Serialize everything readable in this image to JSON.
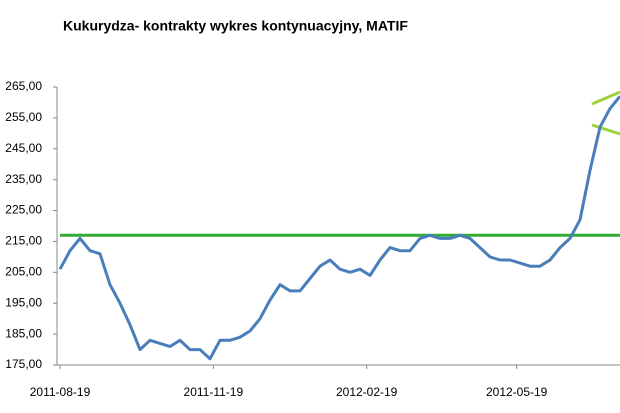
{
  "chart_data": {
    "type": "line",
    "title": "Kukurydza- kontrakty wykres kontynuacyjny, MATIF",
    "x": [
      "2011-08-19",
      "2011-08-25",
      "2011-08-31",
      "2011-09-06",
      "2011-09-12",
      "2011-09-18",
      "2011-09-24",
      "2011-09-30",
      "2011-10-06",
      "2011-10-12",
      "2011-10-18",
      "2011-10-24",
      "2011-10-30",
      "2011-11-05",
      "2011-11-11",
      "2011-11-17",
      "2011-11-23",
      "2011-11-29",
      "2011-12-05",
      "2011-12-11",
      "2011-12-17",
      "2011-12-23",
      "2011-12-29",
      "2012-01-04",
      "2012-01-10",
      "2012-01-16",
      "2012-01-22",
      "2012-01-28",
      "2012-02-03",
      "2012-02-09",
      "2012-02-15",
      "2012-02-21",
      "2012-02-27",
      "2012-03-04",
      "2012-03-10",
      "2012-03-16",
      "2012-03-22",
      "2012-03-28",
      "2012-04-03",
      "2012-04-09",
      "2012-04-15",
      "2012-04-21",
      "2012-04-27",
      "2012-05-03",
      "2012-05-09",
      "2012-05-15",
      "2012-05-21",
      "2012-05-27",
      "2012-06-02",
      "2012-06-08",
      "2012-06-14",
      "2012-06-20",
      "2012-06-26",
      "2012-07-02",
      "2012-07-08",
      "2012-07-14",
      "2012-07-20"
    ],
    "series": [
      {
        "color": "#4a7ebb",
        "values": [
          206,
          212,
          216,
          212,
          211,
          201,
          195,
          188,
          180,
          183,
          182,
          181,
          183,
          180,
          180,
          177,
          183,
          183,
          184,
          186,
          190,
          196,
          201,
          199,
          199,
          203,
          207,
          209,
          206,
          205,
          206,
          204,
          209,
          213,
          212,
          212,
          216,
          217,
          216,
          216,
          217,
          216,
          213,
          210,
          209,
          209,
          208,
          207,
          207,
          209,
          213,
          216,
          222,
          238,
          252,
          258,
          262
        ]
      }
    ],
    "xlim": [
      "2011-08-19",
      "2012-07-20"
    ],
    "xticks": [
      "2011-08-19",
      "2011-11-19",
      "2012-02-19",
      "2012-05-19"
    ],
    "ylim": [
      175,
      265
    ],
    "yticks": [
      {
        "value": 175,
        "label": "175,00"
      },
      {
        "value": 185,
        "label": "185,00"
      },
      {
        "value": 195,
        "label": "195,00"
      },
      {
        "value": 205,
        "label": "205,00"
      },
      {
        "value": 215,
        "label": "215,00"
      },
      {
        "value": 225,
        "label": "225,00"
      },
      {
        "value": 235,
        "label": "235,00"
      },
      {
        "value": 245,
        "label": "245,00"
      },
      {
        "value": 255,
        "label": "255,00"
      },
      {
        "value": 265,
        "label": "265,00"
      }
    ],
    "reference_line": {
      "value": 217,
      "color": "#33aa33"
    },
    "grid": false
  }
}
